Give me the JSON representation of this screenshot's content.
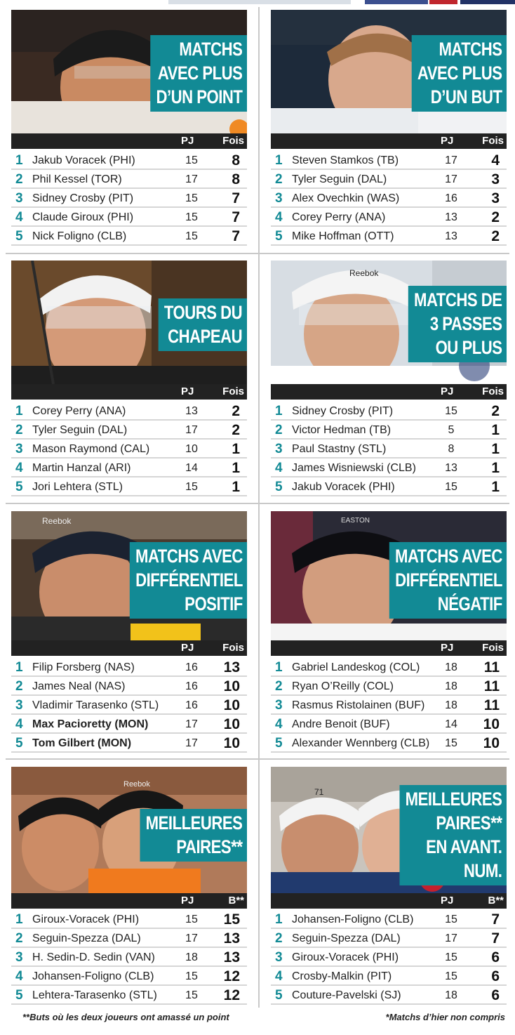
{
  "colors": {
    "accent": "#128a95",
    "header_bg": "#222222",
    "row_divider": "#d6d6d6"
  },
  "panels": [
    {
      "title_lines": [
        "MATCHS",
        "AVEC PLUS",
        "D’UN POINT"
      ],
      "photo": "player-photo-flyers",
      "col_pj": "PJ",
      "col_val": "Fois",
      "rows": [
        {
          "rank": "1",
          "name": "Jakub Voracek (PHI)",
          "pj": "15",
          "val": "8"
        },
        {
          "rank": "2",
          "name": "Phil Kessel (TOR)",
          "pj": "17",
          "val": "8"
        },
        {
          "rank": "3",
          "name": "Sidney Crosby (PIT)",
          "pj": "15",
          "val": "7"
        },
        {
          "rank": "4",
          "name": "Claude Giroux (PHI)",
          "pj": "15",
          "val": "7"
        },
        {
          "rank": "5",
          "name": "Nick Foligno (CLB)",
          "pj": "15",
          "val": "7"
        }
      ]
    },
    {
      "title_lines": [
        "MATCHS",
        "AVEC PLUS",
        "D’UN BUT"
      ],
      "photo": "player-photo-lightning",
      "col_pj": "PJ",
      "col_val": "Fois",
      "rows": [
        {
          "rank": "1",
          "name": "Steven Stamkos (TB)",
          "pj": "17",
          "val": "4"
        },
        {
          "rank": "2",
          "name": "Tyler Seguin (DAL)",
          "pj": "17",
          "val": "3"
        },
        {
          "rank": "3",
          "name": "Alex Ovechkin (WAS)",
          "pj": "16",
          "val": "3"
        },
        {
          "rank": "4",
          "name": "Corey Perry (ANA)",
          "pj": "13",
          "val": "2"
        },
        {
          "rank": "5",
          "name": "Mike Hoffman (OTT)",
          "pj": "13",
          "val": "2"
        }
      ]
    },
    {
      "title_lines": [
        "TOURS DU",
        "CHAPEAU"
      ],
      "photo": "player-photo-flyers-visor",
      "col_pj": "PJ",
      "col_val": "Fois",
      "rows": [
        {
          "rank": "1",
          "name": "Corey Perry (ANA)",
          "pj": "13",
          "val": "2"
        },
        {
          "rank": "2",
          "name": "Tyler Seguin (DAL)",
          "pj": "17",
          "val": "2"
        },
        {
          "rank": "3",
          "name": "Mason Raymond (CAL)",
          "pj": "10",
          "val": "1"
        },
        {
          "rank": "4",
          "name": "Martin Hanzal (ARI)",
          "pj": "14",
          "val": "1"
        },
        {
          "rank": "5",
          "name": "Jori Lehtera (STL)",
          "pj": "15",
          "val": "1"
        }
      ]
    },
    {
      "title_lines": [
        "MATCHS DE",
        "3 PASSES",
        "OU PLUS"
      ],
      "photo": "player-photo-penguins",
      "helmet_text": "Reebok",
      "col_pj": "PJ",
      "col_val": "Fois",
      "rows": [
        {
          "rank": "1",
          "name": "Sidney Crosby (PIT)",
          "pj": "15",
          "val": "2"
        },
        {
          "rank": "2",
          "name": "Victor Hedman (TB)",
          "pj": "5",
          "val": "1"
        },
        {
          "rank": "3",
          "name": "Paul Stastny (STL)",
          "pj": "8",
          "val": "1"
        },
        {
          "rank": "4",
          "name": "James Wisniewski (CLB)",
          "pj": "13",
          "val": "1"
        },
        {
          "rank": "5",
          "name": "Jakub Voracek (PHI)",
          "pj": "15",
          "val": "1"
        }
      ]
    },
    {
      "title_lines": [
        "MATCHS AVEC",
        "DIFFÉRENTIEL",
        "POSITIF"
      ],
      "photo": "player-photo-predators",
      "helmet_text": "Reebok",
      "col_pj": "PJ",
      "col_val": "Fois",
      "rows": [
        {
          "rank": "1",
          "name": "Filip Forsberg (NAS)",
          "pj": "16",
          "val": "13",
          "bold": false
        },
        {
          "rank": "2",
          "name": "James Neal (NAS)",
          "pj": "16",
          "val": "10",
          "bold": false
        },
        {
          "rank": "3",
          "name": "Vladimir Tarasenko (STL)",
          "pj": "16",
          "val": "10",
          "bold": false
        },
        {
          "rank": "4",
          "name": "Max Pacioretty (MON)",
          "pj": "17",
          "val": "10",
          "bold": true
        },
        {
          "rank": "5",
          "name": "Tom Gilbert (MON)",
          "pj": "17",
          "val": "10",
          "bold": true
        }
      ]
    },
    {
      "title_lines": [
        "MATCHS AVEC",
        "DIFFÉRENTIEL",
        "NÉGATIF"
      ],
      "photo": "player-photo-avalanche",
      "helmet_text": "EASTON",
      "col_pj": "PJ",
      "col_val": "Fois",
      "rows": [
        {
          "rank": "1",
          "name": "Gabriel Landeskog (COL)",
          "pj": "18",
          "val": "11"
        },
        {
          "rank": "2",
          "name": "Ryan O’Reilly (COL)",
          "pj": "18",
          "val": "11"
        },
        {
          "rank": "3",
          "name": "Rasmus Ristolainen (BUF)",
          "pj": "18",
          "val": "11"
        },
        {
          "rank": "4",
          "name": "Andre Benoit (BUF)",
          "pj": "14",
          "val": "10"
        },
        {
          "rank": "5",
          "name": "Alexander Wennberg (CLB)",
          "pj": "15",
          "val": "10"
        }
      ]
    },
    {
      "title_lines": [
        "MEILLEURES",
        "PAIRES**"
      ],
      "photo": "players-photo-flyers-pair",
      "helmet_text": "Reebok",
      "col_pj": "PJ",
      "col_val": "B**",
      "rows": [
        {
          "rank": "1",
          "name": "Giroux-Voracek (PHI)",
          "pj": "15",
          "val": "15"
        },
        {
          "rank": "2",
          "name": "Seguin-Spezza (DAL)",
          "pj": "17",
          "val": "13"
        },
        {
          "rank": "3",
          "name": "H. Sedin-D. Sedin (VAN)",
          "pj": "18",
          "val": "13"
        },
        {
          "rank": "4",
          "name": "Johansen-Foligno (CLB)",
          "pj": "15",
          "val": "12"
        },
        {
          "rank": "5",
          "name": "Lehtera-Tarasenko (STL)",
          "pj": "15",
          "val": "12"
        }
      ]
    },
    {
      "title_lines": [
        "MEILLEURES",
        "PAIRES**",
        "EN AVANT.",
        "NUM."
      ],
      "photo": "players-photo-blue-jackets-pair",
      "helmet_text": "71",
      "col_pj": "PJ",
      "col_val": "B**",
      "rows": [
        {
          "rank": "1",
          "name": "Johansen-Foligno (CLB)",
          "pj": "15",
          "val": "7"
        },
        {
          "rank": "2",
          "name": "Seguin-Spezza (DAL)",
          "pj": "17",
          "val": "7"
        },
        {
          "rank": "3",
          "name": "Giroux-Voracek (PHI)",
          "pj": "15",
          "val": "6"
        },
        {
          "rank": "4",
          "name": "Crosby-Malkin (PIT)",
          "pj": "15",
          "val": "6"
        },
        {
          "rank": "5",
          "name": "Couture-Pavelski (SJ)",
          "pj": "18",
          "val": "6"
        }
      ]
    }
  ],
  "footnotes": {
    "left": "**Buts où les deux joueurs ont amassé un point",
    "right": "*Matchs d’hier non compris"
  }
}
